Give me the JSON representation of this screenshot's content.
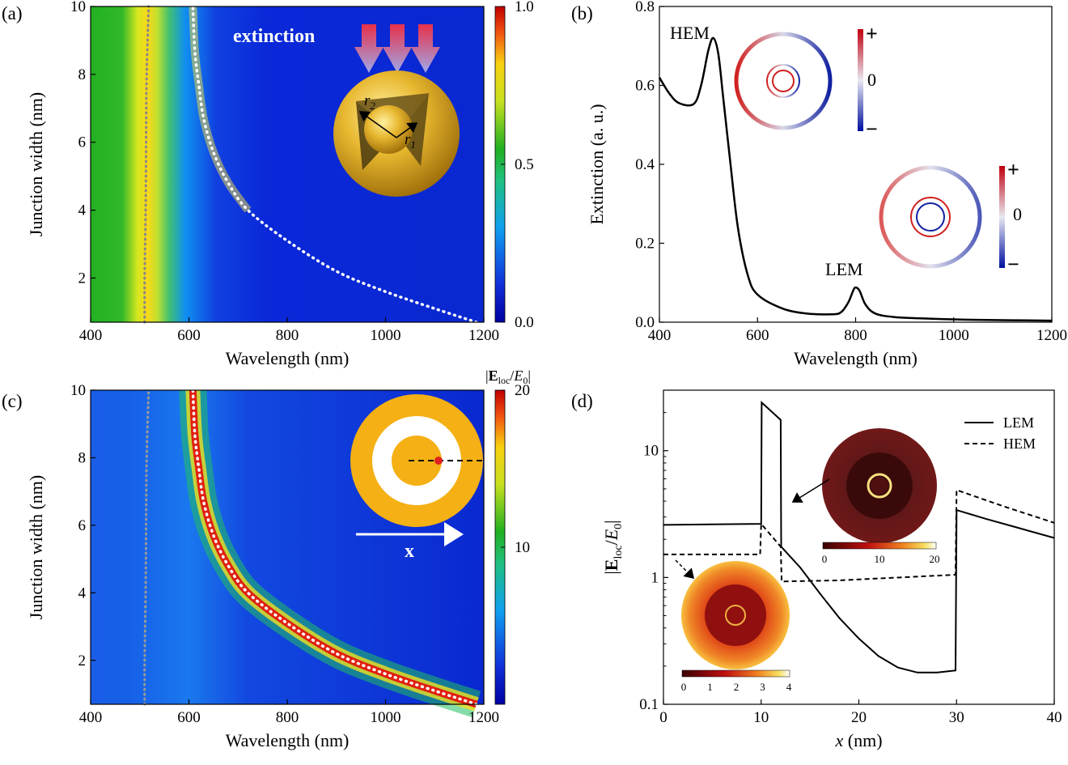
{
  "panels": {
    "a": {
      "label": "(a)",
      "inset_text": "extinction",
      "r1": "r",
      "r1_sub": "1",
      "r2": "r",
      "r2_sub": "2"
    },
    "b": {
      "label": "(b)"
    },
    "c": {
      "label": "(c)",
      "inset_arrow_label": "x"
    },
    "d": {
      "label": "(d)"
    }
  },
  "chart_data": [
    {
      "id": "a",
      "type": "heatmap",
      "xlabel": "Wavelength (nm)",
      "ylabel": "Junction width (nm)",
      "xlim": [
        400,
        1200
      ],
      "ylim": [
        0.7,
        10
      ],
      "x_ticks": [
        400,
        600,
        800,
        1000,
        1200
      ],
      "y_ticks": [
        2,
        4,
        6,
        8,
        10
      ],
      "colorbar": {
        "ticks": [
          "0.0",
          "0.5",
          "1.0"
        ],
        "range": [
          0,
          1
        ]
      },
      "series": [
        {
          "values": [
            [
              510,
              0.7
            ],
            [
              510,
              2
            ],
            [
              512,
              4
            ],
            [
              513,
              6
            ],
            [
              514,
              8
            ],
            [
              518,
              10
            ]
          ]
        },
        {
          "values": [
            [
              1185,
              0.7
            ],
            [
              1100,
              1.1
            ],
            [
              1000,
              1.6
            ],
            [
              900,
              2.2
            ],
            [
              800,
              3.1
            ],
            [
              720,
              4.0
            ],
            [
              680,
              4.8
            ],
            [
              650,
              5.7
            ],
            [
              630,
              6.7
            ],
            [
              620,
              7.7
            ],
            [
              612,
              8.7
            ],
            [
              608,
              10
            ]
          ]
        }
      ]
    },
    {
      "id": "b",
      "type": "line",
      "xlabel": "Wavelength (nm)",
      "ylabel": "Extinction (a. u.)",
      "xlim": [
        400,
        1200
      ],
      "ylim": [
        0,
        0.8
      ],
      "x_ticks": [
        400,
        600,
        800,
        1000,
        1200
      ],
      "y_ticks": [
        "0.0",
        "0.2",
        "0.4",
        "0.6",
        "0.8"
      ],
      "annotations": [
        "HEM",
        "LEM"
      ],
      "inset_scales": [
        [
          "+",
          "0",
          "−"
        ],
        [
          "+",
          "0",
          "−"
        ]
      ],
      "series": [
        {
          "values": [
            [
              400,
              0.62
            ],
            [
              420,
              0.58
            ],
            [
              440,
              0.555
            ],
            [
              470,
              0.553
            ],
            [
              485,
              0.6
            ],
            [
              500,
              0.69
            ],
            [
              510,
              0.72
            ],
            [
              520,
              0.68
            ],
            [
              530,
              0.57
            ],
            [
              545,
              0.4
            ],
            [
              560,
              0.24
            ],
            [
              580,
              0.12
            ],
            [
              600,
              0.07
            ],
            [
              650,
              0.035
            ],
            [
              700,
              0.022
            ],
            [
              750,
              0.02
            ],
            [
              770,
              0.025
            ],
            [
              785,
              0.05
            ],
            [
              795,
              0.08
            ],
            [
              800,
              0.088
            ],
            [
              808,
              0.08
            ],
            [
              820,
              0.045
            ],
            [
              840,
              0.022
            ],
            [
              880,
              0.013
            ],
            [
              950,
              0.009
            ],
            [
              1050,
              0.006
            ],
            [
              1200,
              0.004
            ]
          ]
        }
      ]
    },
    {
      "id": "c",
      "type": "heatmap",
      "xlabel": "Wavelength (nm)",
      "ylabel": "Junction width (nm)",
      "xlim": [
        400,
        1200
      ],
      "ylim": [
        0.7,
        10
      ],
      "x_ticks": [
        400,
        600,
        800,
        1000,
        1200
      ],
      "y_ticks": [
        2,
        4,
        6,
        8,
        10
      ],
      "colorbar": {
        "title": "|E_loc/E_0|",
        "ticks": [
          "10",
          "20"
        ],
        "range": [
          0,
          20
        ]
      },
      "series": [
        {
          "values": [
            [
              510,
              0.7
            ],
            [
              510,
              2
            ],
            [
              512,
              4
            ],
            [
              513,
              6
            ],
            [
              514,
              8
            ],
            [
              518,
              10
            ]
          ]
        },
        {
          "values": [
            [
              1185,
              0.7
            ],
            [
              1100,
              1.1
            ],
            [
              1000,
              1.6
            ],
            [
              900,
              2.2
            ],
            [
              800,
              3.1
            ],
            [
              720,
              4.0
            ],
            [
              680,
              4.8
            ],
            [
              650,
              5.7
            ],
            [
              630,
              6.7
            ],
            [
              620,
              7.7
            ],
            [
              612,
              8.7
            ],
            [
              608,
              10
            ]
          ]
        }
      ]
    },
    {
      "id": "d",
      "type": "line",
      "xlabel": "x (nm)",
      "ylabel": "|E_loc/E_0|",
      "xlim": [
        0,
        40
      ],
      "ylim": [
        0.1,
        30
      ],
      "yscale": "log",
      "x_ticks": [
        0,
        10,
        20,
        30,
        40
      ],
      "y_ticks": [
        "0.1",
        "1",
        "10"
      ],
      "legend_position": "top-right",
      "inset_colorbars": [
        [
          "0",
          "10",
          "20"
        ],
        [
          "0",
          "1",
          "2",
          "3",
          "4"
        ]
      ],
      "series": [
        {
          "name": "LEM",
          "style": "solid",
          "values": [
            [
              0,
              2.6
            ],
            [
              10,
              2.65
            ],
            [
              10.05,
              24
            ],
            [
              12,
              17.5
            ],
            [
              12.05,
              1.75
            ],
            [
              14,
              1.2
            ],
            [
              16,
              0.75
            ],
            [
              18,
              0.48
            ],
            [
              20,
              0.33
            ],
            [
              22,
              0.24
            ],
            [
              24,
              0.195
            ],
            [
              26,
              0.178
            ],
            [
              28,
              0.178
            ],
            [
              29.9,
              0.185
            ],
            [
              30,
              3.4
            ],
            [
              33,
              2.9
            ],
            [
              36,
              2.5
            ],
            [
              40,
              2.05
            ]
          ]
        },
        {
          "name": "HEM",
          "style": "dashed",
          "values": [
            [
              0,
              1.52
            ],
            [
              9.9,
              1.52
            ],
            [
              10,
              2.65
            ],
            [
              12,
              1.75
            ],
            [
              12.1,
              0.93
            ],
            [
              18,
              0.95
            ],
            [
              29.9,
              1.05
            ],
            [
              30,
              4.9
            ],
            [
              35,
              3.6
            ],
            [
              40,
              2.7
            ]
          ]
        }
      ]
    }
  ]
}
